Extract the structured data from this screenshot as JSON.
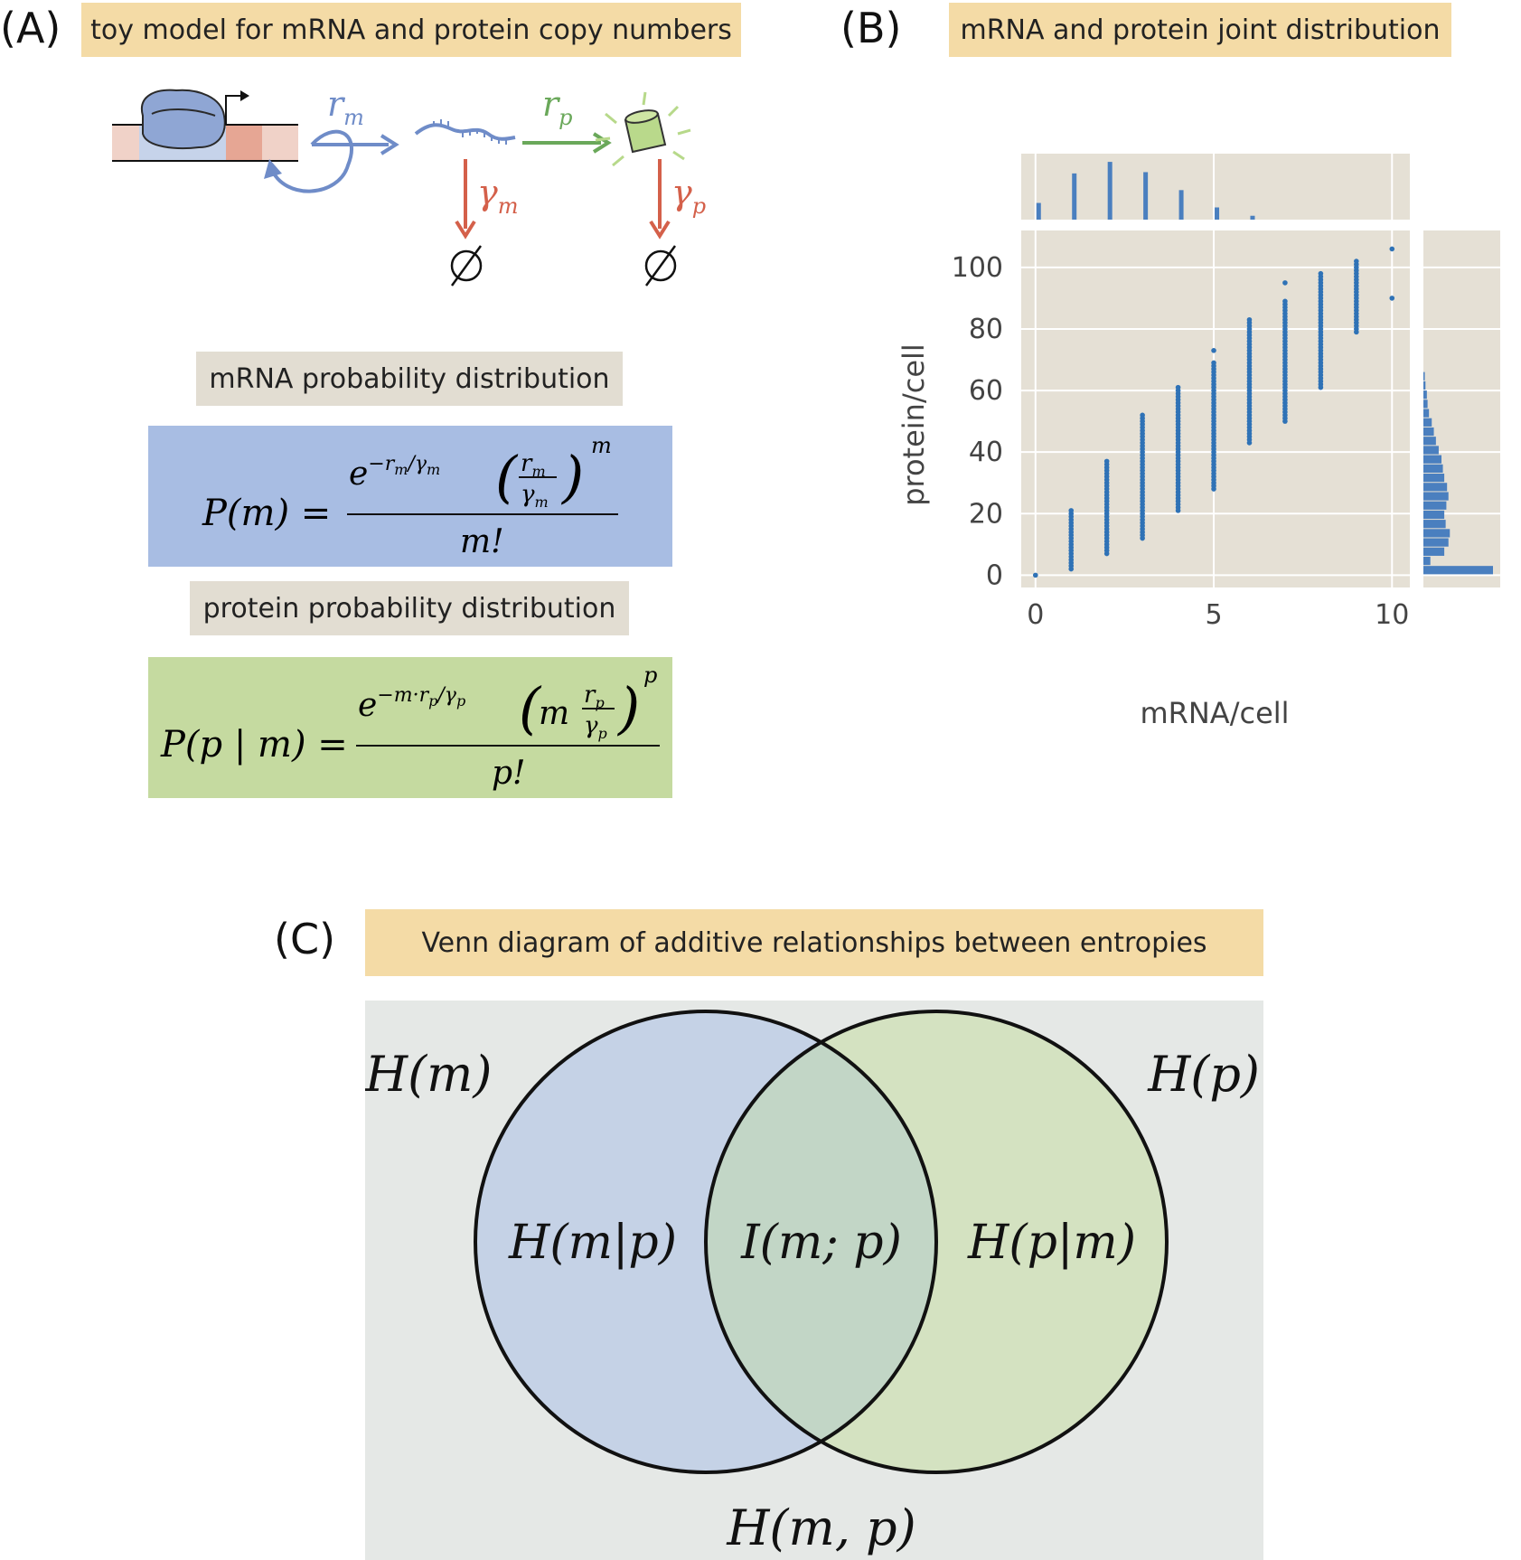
{
  "panelA": {
    "letter": "(A)",
    "title": "toy model for mRNA and protein copy numbers",
    "rate_rm": "r",
    "rate_rm_sub": "m",
    "rate_rp": "r",
    "rate_rp_sub": "p",
    "decay_gm": "γ",
    "decay_gm_sub": "m",
    "decay_gp": "γ",
    "decay_gp_sub": "p",
    "null_symbol": "∅",
    "mrna_label": "mRNA probability distribution",
    "protein_label": "protein probability distribution",
    "mrna_eq": {
      "lhs": "P(m) =",
      "num_exp": "e",
      "num_sup": "−r",
      "num_sup_sub": "m",
      "num_sup_mid": "/γ",
      "num_sup_sub2": "m",
      "frac_top": "r",
      "frac_top_sub": "m",
      "frac_bot": "γ",
      "frac_bot_sub": "m",
      "power": "m",
      "den": "m!"
    },
    "protein_eq": {
      "lhs": "P(p | m) =",
      "num_exp": "e",
      "num_sup": "−m·r",
      "num_sup_sub": "p",
      "num_sup_mid": "/γ",
      "num_sup_sub2": "p",
      "m_factor": "m",
      "frac_top": "r",
      "frac_top_sub": "p",
      "frac_bot": "γ",
      "frac_bot_sub": "p",
      "power": "p",
      "den": "p!"
    },
    "colors": {
      "blue": "#6f8cc8",
      "green": "#6aa85a",
      "red": "#d4604a",
      "mrna_box": "#a8bde3",
      "protein_box": "#c5daa0"
    }
  },
  "panelB": {
    "letter": "(B)",
    "title": "mRNA and protein joint distribution"
  },
  "chart_data": {
    "type": "scatter",
    "title": "",
    "xlabel": "mRNA/cell",
    "ylabel": "protein/cell",
    "xlim": [
      -0.4,
      10.5
    ],
    "ylim": [
      -4,
      112
    ],
    "xticks": [
      0,
      5,
      10
    ],
    "yticks": [
      0,
      20,
      40,
      60,
      80,
      100
    ],
    "grid": true,
    "background": "#e5e0d5",
    "point_color": "#2f72b6",
    "columns": [
      {
        "x": 0,
        "ymin": 0,
        "ymax": 0
      },
      {
        "x": 1,
        "ymin": 2,
        "ymax": 21
      },
      {
        "x": 2,
        "ymin": 7,
        "ymax": 37
      },
      {
        "x": 3,
        "ymin": 12,
        "ymax": 52
      },
      {
        "x": 4,
        "ymin": 21,
        "ymax": 61
      },
      {
        "x": 5,
        "ymin": 28,
        "ymax": 69,
        "extra": [
          73
        ]
      },
      {
        "x": 6,
        "ymin": 43,
        "ymax": 83
      },
      {
        "x": 7,
        "ymin": 50,
        "ymax": 89,
        "extra": [
          95
        ]
      },
      {
        "x": 8,
        "ymin": 61,
        "ymax": 98
      },
      {
        "x": 9,
        "ymin": 79,
        "ymax": 102
      },
      {
        "x": 10,
        "ymin": 90,
        "ymax": 90,
        "extra": [
          106
        ]
      }
    ],
    "marginal_x": {
      "categories": [
        0,
        1,
        2,
        3,
        4,
        5,
        6
      ],
      "values": [
        0.26,
        0.72,
        0.9,
        0.74,
        0.46,
        0.19,
        0.06
      ]
    },
    "marginal_y": {
      "bins": [
        0,
        3,
        6,
        9,
        12,
        15,
        18,
        21,
        24,
        27,
        30,
        33,
        36,
        39,
        42,
        45,
        48,
        51,
        54,
        57,
        60,
        63
      ],
      "values": [
        1.0,
        0.1,
        0.3,
        0.36,
        0.38,
        0.32,
        0.3,
        0.33,
        0.36,
        0.34,
        0.3,
        0.28,
        0.26,
        0.22,
        0.18,
        0.15,
        0.12,
        0.08,
        0.06,
        0.05,
        0.03,
        0.02
      ]
    }
  },
  "panelC": {
    "letter": "(C)",
    "title": "Venn diagram of additive relationships between entropies",
    "H_m": "H(m)",
    "H_p": "H(p)",
    "H_m_given_p": "H(m|p)",
    "I_mp": "I(m; p)",
    "H_p_given_m": "H(p|m)",
    "H_joint": "H(m, p)",
    "colors": {
      "background": "#e5e8e6",
      "left": "#c5d2e6",
      "right": "#d4e2c1",
      "overlap": "#c2d6c6"
    }
  }
}
